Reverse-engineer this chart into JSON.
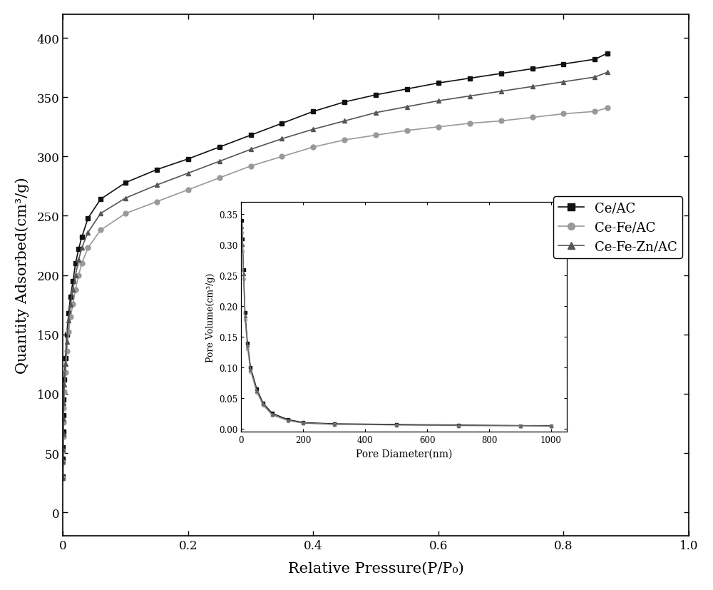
{
  "title": "",
  "xlabel": "Relative Pressure(P/P₀)",
  "ylabel": "Quantity Adsorbed(cm³/g)",
  "xlim": [
    0,
    1.0
  ],
  "ylim": [
    -20,
    420
  ],
  "background_color": "#ffffff",
  "series": [
    {
      "label": "Ce/AC",
      "color": "#111111",
      "marker": "s",
      "markersize": 5,
      "linewidth": 1.2,
      "x": [
        1e-05,
        3e-05,
        8e-05,
        0.0002,
        0.0005,
        0.001,
        0.002,
        0.004,
        0.006,
        0.009,
        0.012,
        0.016,
        0.02,
        0.025,
        0.03,
        0.04,
        0.06,
        0.1,
        0.15,
        0.2,
        0.25,
        0.3,
        0.35,
        0.4,
        0.45,
        0.5,
        0.55,
        0.6,
        0.65,
        0.7,
        0.75,
        0.8,
        0.85,
        0.87
      ],
      "y": [
        30,
        45,
        55,
        68,
        82,
        95,
        112,
        130,
        150,
        168,
        182,
        195,
        210,
        222,
        232,
        248,
        264,
        278,
        289,
        298,
        308,
        318,
        328,
        338,
        346,
        352,
        357,
        362,
        366,
        370,
        374,
        378,
        382,
        387
      ]
    },
    {
      "label": "Ce-Fe/AC",
      "color": "#999999",
      "marker": "o",
      "markersize": 5,
      "linewidth": 1.2,
      "x": [
        1e-05,
        3e-05,
        8e-05,
        0.0002,
        0.0005,
        0.001,
        0.002,
        0.004,
        0.006,
        0.009,
        0.012,
        0.016,
        0.02,
        0.025,
        0.03,
        0.04,
        0.06,
        0.1,
        0.15,
        0.2,
        0.25,
        0.3,
        0.35,
        0.4,
        0.45,
        0.5,
        0.55,
        0.6,
        0.65,
        0.7,
        0.75,
        0.8,
        0.85,
        0.87
      ],
      "y": [
        29,
        42,
        52,
        64,
        76,
        88,
        102,
        118,
        136,
        152,
        165,
        176,
        188,
        200,
        210,
        223,
        238,
        252,
        262,
        272,
        282,
        292,
        300,
        308,
        314,
        318,
        322,
        325,
        328,
        330,
        333,
        336,
        338,
        341
      ]
    },
    {
      "label": "Ce-Fe-Zn/AC",
      "color": "#555555",
      "marker": "^",
      "markersize": 5,
      "linewidth": 1.2,
      "x": [
        1e-05,
        3e-05,
        8e-05,
        0.0002,
        0.0005,
        0.001,
        0.002,
        0.004,
        0.006,
        0.009,
        0.012,
        0.016,
        0.02,
        0.025,
        0.03,
        0.04,
        0.06,
        0.1,
        0.15,
        0.2,
        0.25,
        0.3,
        0.35,
        0.4,
        0.45,
        0.5,
        0.55,
        0.6,
        0.65,
        0.7,
        0.75,
        0.8,
        0.85,
        0.87
      ],
      "y": [
        29,
        43,
        53,
        66,
        79,
        92,
        108,
        125,
        144,
        162,
        175,
        188,
        200,
        213,
        223,
        236,
        252,
        265,
        276,
        286,
        296,
        306,
        315,
        323,
        330,
        337,
        342,
        347,
        351,
        355,
        359,
        363,
        367,
        371
      ]
    }
  ],
  "inset": {
    "x_pore_diameter": [
      2,
      4,
      7,
      12,
      20,
      30,
      50,
      70,
      100,
      150,
      200,
      300,
      500,
      700,
      900,
      1000
    ],
    "series": [
      {
        "label": "Ce/AC",
        "color": "#111111",
        "marker": "s",
        "markersize": 3,
        "linewidth": 0.9,
        "y": [
          0.34,
          0.31,
          0.26,
          0.19,
          0.14,
          0.1,
          0.065,
          0.042,
          0.025,
          0.015,
          0.01,
          0.008,
          0.007,
          0.006,
          0.005,
          0.005
        ]
      },
      {
        "label": "Ce-Fe/AC",
        "color": "#aaaaaa",
        "marker": "o",
        "markersize": 3,
        "linewidth": 0.9,
        "y": [
          0.32,
          0.29,
          0.245,
          0.178,
          0.13,
          0.093,
          0.059,
          0.038,
          0.022,
          0.013,
          0.009,
          0.007,
          0.006,
          0.005,
          0.004,
          0.004
        ]
      },
      {
        "label": "Ce-Fe-Zn/AC",
        "color": "#666666",
        "marker": "^",
        "markersize": 3,
        "linewidth": 0.9,
        "y": [
          0.33,
          0.3,
          0.252,
          0.184,
          0.136,
          0.097,
          0.062,
          0.04,
          0.023,
          0.014,
          0.009,
          0.007,
          0.006,
          0.005,
          0.005,
          0.004
        ]
      }
    ],
    "xlabel": "Pore Diameter(nm)",
    "ylabel": "Pore Volume(cm³/g)",
    "xlim": [
      0,
      1050
    ],
    "ylim": [
      -0.005,
      0.37
    ],
    "yticks": [
      0.0,
      0.05,
      0.1,
      0.15,
      0.2,
      0.25,
      0.3,
      0.35
    ],
    "xticks": [
      0,
      200,
      400,
      600,
      800,
      1000
    ]
  },
  "legend": {
    "labels": [
      "Ce/AC",
      "Ce-Fe/AC",
      "Ce-Fe-Zn/AC"
    ],
    "colors": [
      "#111111",
      "#999999",
      "#555555"
    ],
    "markers": [
      "s",
      "o",
      "^"
    ],
    "fontsize": 13
  }
}
